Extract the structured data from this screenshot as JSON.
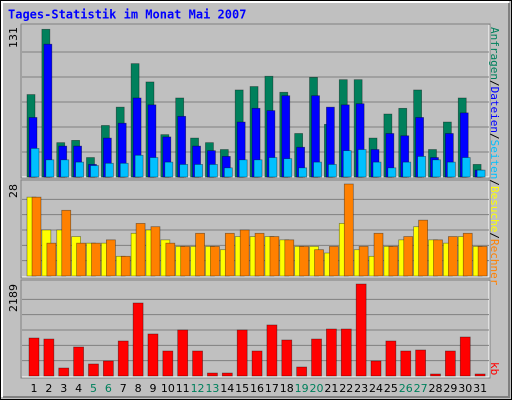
{
  "chart_data": {
    "type": "bar",
    "title": "Tages-Statistik im Monat Mai 2007",
    "categories": [
      "1",
      "2",
      "3",
      "4",
      "5",
      "6",
      "7",
      "8",
      "9",
      "10",
      "11",
      "12",
      "13",
      "14",
      "15",
      "16",
      "17",
      "18",
      "19",
      "20",
      "21",
      "22",
      "23",
      "24",
      "25",
      "26",
      "27",
      "28",
      "29",
      "30",
      "31"
    ],
    "category_colors": [
      "#000000",
      "#000000",
      "#000000",
      "#000000",
      "#00805c",
      "#00805c",
      "#000000",
      "#000000",
      "#000000",
      "#000000",
      "#000000",
      "#00805c",
      "#00805c",
      "#000000",
      "#000000",
      "#000000",
      "#000000",
      "#000000",
      "#00805c",
      "#00805c",
      "#000000",
      "#000000",
      "#000000",
      "#000000",
      "#000000",
      "#00805c",
      "#00805c",
      "#000000",
      "#000000",
      "#000000",
      "#000000"
    ],
    "legend_separator": "/",
    "panels": [
      {
        "ylim": [
          0,
          131
        ],
        "yticks": [
          131
        ],
        "grid": true,
        "series": [
          {
            "name": "Anfragen",
            "color": "#00805c",
            "values": [
              72,
              129,
              30,
              32,
              17,
              45,
              61,
              99,
              83,
              37,
              69,
              34,
              30,
              24,
              76,
              79,
              88,
              74,
              38,
              87,
              46,
              85,
              85,
              34,
              55,
              60,
              76,
              24,
              48,
              69,
              11
            ]
          },
          {
            "name": "Dateien",
            "color": "#0000ff",
            "values": [
              52,
              116,
              27,
              27,
              11,
              34,
              47,
              69,
              63,
              35,
              53,
              27,
              23,
              18,
              48,
              60,
              58,
              71,
              26,
              71,
              61,
              63,
              64,
              24,
              38,
              36,
              52,
              17,
              38,
              56,
              6
            ]
          },
          {
            "name": "Seiten",
            "color": "#00c0ff",
            "values": [
              25,
              15,
              15,
              13,
              10,
              12,
              12,
              19,
              17,
              13,
              11,
              11,
              11,
              8,
              15,
              15,
              17,
              16,
              8,
              13,
              11,
              23,
              24,
              13,
              8,
              13,
              18,
              15,
              13,
              17,
              6
            ]
          }
        ]
      },
      {
        "ylim": [
          0,
          28
        ],
        "yticks": [
          28
        ],
        "grid": true,
        "series": [
          {
            "name": "Besuche",
            "color": "#ffff00",
            "values": [
              24,
              14,
              14,
              12,
              10,
              10,
              6,
              13,
              14,
              11,
              9,
              9,
              9,
              8,
              12,
              12,
              12,
              11,
              9,
              9,
              7,
              16,
              8,
              6,
              9,
              11,
              15,
              11,
              10,
              12,
              9
            ]
          },
          {
            "name": "Rechner",
            "color": "#ff8000",
            "values": [
              24,
              10,
              20,
              10,
              10,
              11,
              6,
              16,
              15,
              10,
              9,
              13,
              9,
              13,
              14,
              13,
              12,
              11,
              9,
              8,
              9,
              28,
              9,
              13,
              9,
              12,
              17,
              11,
              12,
              13,
              9
            ]
          }
        ]
      },
      {
        "ylim": [
          0,
          2189
        ],
        "yticks": [
          2189
        ],
        "grid": true,
        "series": [
          {
            "name": "kb",
            "color": "#ff0000",
            "values": [
              904,
              880,
              190,
              690,
              286,
              357,
              833,
              1737,
              1000,
              595,
              1095,
              595,
              71,
              71,
              1095,
              595,
              1214,
              857,
              214,
              880,
              1118,
              1118,
              2189,
              357,
              833,
              595,
              619,
              48,
              595,
              928,
              48
            ]
          }
        ]
      }
    ]
  }
}
